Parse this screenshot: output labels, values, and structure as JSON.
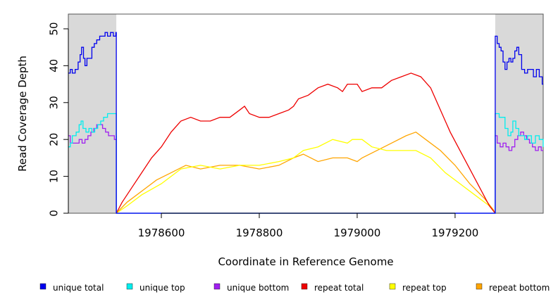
{
  "chart_data": {
    "type": "line",
    "title": "",
    "xlabel": "Coordinate in Reference Genome",
    "ylabel": "Read Coverage Depth",
    "xlim": [
      1978410,
      1979380
    ],
    "ylim": [
      0,
      54
    ],
    "x_ticks": [
      1978600,
      1978800,
      1979000,
      1979200
    ],
    "y_ticks": [
      0,
      10,
      20,
      30,
      40,
      50
    ],
    "shaded_regions": [
      {
        "from": 1978410,
        "to": 1978508,
        "color": "#d9d9d9"
      },
      {
        "from": 1979282,
        "to": 1979380,
        "color": "#d9d9d9"
      }
    ],
    "legend_position": "bottom",
    "series": [
      {
        "name": "unique total",
        "color": "#0000ee",
        "step": true,
        "points": [
          [
            1978410,
            38
          ],
          [
            1978414,
            39
          ],
          [
            1978418,
            38
          ],
          [
            1978424,
            39
          ],
          [
            1978430,
            41
          ],
          [
            1978434,
            43
          ],
          [
            1978437,
            45
          ],
          [
            1978441,
            42
          ],
          [
            1978444,
            40
          ],
          [
            1978448,
            42
          ],
          [
            1978455,
            42
          ],
          [
            1978458,
            45
          ],
          [
            1978463,
            46
          ],
          [
            1978468,
            47
          ],
          [
            1978474,
            48
          ],
          [
            1978480,
            48
          ],
          [
            1978485,
            49
          ],
          [
            1978490,
            48
          ],
          [
            1978496,
            49
          ],
          [
            1978502,
            48
          ],
          [
            1978507,
            49
          ],
          [
            1978508,
            0
          ],
          [
            1979282,
            0
          ],
          [
            1979282,
            48
          ],
          [
            1979286,
            46
          ],
          [
            1979290,
            45
          ],
          [
            1979294,
            44
          ],
          [
            1979298,
            41
          ],
          [
            1979302,
            39
          ],
          [
            1979306,
            41
          ],
          [
            1979310,
            42
          ],
          [
            1979314,
            41
          ],
          [
            1979318,
            42
          ],
          [
            1979322,
            44
          ],
          [
            1979326,
            45
          ],
          [
            1979330,
            43
          ],
          [
            1979336,
            39
          ],
          [
            1979342,
            38
          ],
          [
            1979348,
            39
          ],
          [
            1979354,
            39
          ],
          [
            1979360,
            37
          ],
          [
            1979366,
            39
          ],
          [
            1979372,
            37
          ],
          [
            1979378,
            35
          ],
          [
            1979380,
            35
          ]
        ]
      },
      {
        "name": "unique top",
        "color": "#00eeee",
        "step": true,
        "points": [
          [
            1978410,
            18
          ],
          [
            1978414,
            19
          ],
          [
            1978418,
            21
          ],
          [
            1978426,
            22
          ],
          [
            1978432,
            24
          ],
          [
            1978436,
            25
          ],
          [
            1978440,
            23
          ],
          [
            1978446,
            22
          ],
          [
            1978452,
            23
          ],
          [
            1978458,
            22
          ],
          [
            1978464,
            23
          ],
          [
            1978470,
            24
          ],
          [
            1978476,
            25
          ],
          [
            1978482,
            26
          ],
          [
            1978490,
            27
          ],
          [
            1978500,
            27
          ],
          [
            1978508,
            27
          ],
          [
            1978508,
            0
          ],
          [
            1979282,
            0
          ],
          [
            1979282,
            27
          ],
          [
            1979290,
            26
          ],
          [
            1979296,
            26
          ],
          [
            1979302,
            23
          ],
          [
            1979308,
            21
          ],
          [
            1979314,
            22
          ],
          [
            1979318,
            25
          ],
          [
            1979324,
            23
          ],
          [
            1979330,
            21
          ],
          [
            1979336,
            21
          ],
          [
            1979342,
            20
          ],
          [
            1979348,
            21
          ],
          [
            1979356,
            19
          ],
          [
            1979364,
            21
          ],
          [
            1979372,
            20
          ],
          [
            1979380,
            18
          ]
        ]
      },
      {
        "name": "unique bottom",
        "color": "#a020f0",
        "step": true,
        "points": [
          [
            1978410,
            21
          ],
          [
            1978414,
            19
          ],
          [
            1978420,
            19
          ],
          [
            1978426,
            19
          ],
          [
            1978432,
            20
          ],
          [
            1978438,
            19
          ],
          [
            1978444,
            20
          ],
          [
            1978450,
            21
          ],
          [
            1978456,
            22
          ],
          [
            1978462,
            23
          ],
          [
            1978468,
            24
          ],
          [
            1978474,
            24
          ],
          [
            1978480,
            23
          ],
          [
            1978486,
            22
          ],
          [
            1978492,
            21
          ],
          [
            1978498,
            21
          ],
          [
            1978504,
            20
          ],
          [
            1978508,
            21
          ],
          [
            1978508,
            0
          ],
          [
            1979282,
            0
          ],
          [
            1979282,
            21
          ],
          [
            1979286,
            19
          ],
          [
            1979292,
            18
          ],
          [
            1979298,
            19
          ],
          [
            1979304,
            18
          ],
          [
            1979310,
            17
          ],
          [
            1979316,
            18
          ],
          [
            1979322,
            20
          ],
          [
            1979328,
            21
          ],
          [
            1979334,
            22
          ],
          [
            1979340,
            21
          ],
          [
            1979346,
            20
          ],
          [
            1979352,
            19
          ],
          [
            1979358,
            18
          ],
          [
            1979364,
            17
          ],
          [
            1979370,
            18
          ],
          [
            1979376,
            17
          ],
          [
            1979380,
            17
          ]
        ]
      },
      {
        "name": "repeat total",
        "color": "#ee0000",
        "step": false,
        "points": [
          [
            1978508,
            0
          ],
          [
            1978520,
            3
          ],
          [
            1978540,
            7
          ],
          [
            1978560,
            11
          ],
          [
            1978580,
            15
          ],
          [
            1978600,
            18
          ],
          [
            1978620,
            22
          ],
          [
            1978640,
            25
          ],
          [
            1978660,
            26
          ],
          [
            1978680,
            25
          ],
          [
            1978700,
            25
          ],
          [
            1978720,
            26
          ],
          [
            1978740,
            26
          ],
          [
            1978760,
            28
          ],
          [
            1978770,
            29
          ],
          [
            1978780,
            27
          ],
          [
            1978800,
            26
          ],
          [
            1978820,
            26
          ],
          [
            1978840,
            27
          ],
          [
            1978860,
            28
          ],
          [
            1978870,
            29
          ],
          [
            1978880,
            31
          ],
          [
            1978900,
            32
          ],
          [
            1978920,
            34
          ],
          [
            1978940,
            35
          ],
          [
            1978960,
            34
          ],
          [
            1978970,
            33
          ],
          [
            1978980,
            35
          ],
          [
            1979000,
            35
          ],
          [
            1979010,
            33
          ],
          [
            1979030,
            34
          ],
          [
            1979050,
            34
          ],
          [
            1979070,
            36
          ],
          [
            1979090,
            37
          ],
          [
            1979110,
            38
          ],
          [
            1979130,
            37
          ],
          [
            1979150,
            34
          ],
          [
            1979170,
            28
          ],
          [
            1979190,
            22
          ],
          [
            1979210,
            17
          ],
          [
            1979230,
            12
          ],
          [
            1979250,
            7
          ],
          [
            1979270,
            2
          ],
          [
            1979282,
            0
          ]
        ]
      },
      {
        "name": "repeat top",
        "color": "#ffff00",
        "step": false,
        "points": [
          [
            1978508,
            0
          ],
          [
            1978530,
            2
          ],
          [
            1978560,
            5
          ],
          [
            1978600,
            8
          ],
          [
            1978640,
            12
          ],
          [
            1978680,
            13
          ],
          [
            1978720,
            12
          ],
          [
            1978760,
            13
          ],
          [
            1978800,
            13
          ],
          [
            1978840,
            14
          ],
          [
            1978870,
            15
          ],
          [
            1978890,
            17
          ],
          [
            1978920,
            18
          ],
          [
            1978950,
            20
          ],
          [
            1978980,
            19
          ],
          [
            1978990,
            20
          ],
          [
            1979010,
            20
          ],
          [
            1979030,
            18
          ],
          [
            1979060,
            17
          ],
          [
            1979090,
            17
          ],
          [
            1979120,
            17
          ],
          [
            1979150,
            15
          ],
          [
            1979180,
            11
          ],
          [
            1979210,
            8
          ],
          [
            1979240,
            5
          ],
          [
            1979270,
            2
          ],
          [
            1979282,
            0
          ]
        ]
      },
      {
        "name": "repeat bottom",
        "color": "#ffa500",
        "step": false,
        "points": [
          [
            1978508,
            0
          ],
          [
            1978530,
            3
          ],
          [
            1978560,
            6
          ],
          [
            1978590,
            9
          ],
          [
            1978620,
            11
          ],
          [
            1978650,
            13
          ],
          [
            1978680,
            12
          ],
          [
            1978720,
            13
          ],
          [
            1978760,
            13
          ],
          [
            1978800,
            12
          ],
          [
            1978840,
            13
          ],
          [
            1978870,
            15
          ],
          [
            1978890,
            16
          ],
          [
            1978920,
            14
          ],
          [
            1978950,
            15
          ],
          [
            1978980,
            15
          ],
          [
            1979000,
            14
          ],
          [
            1979010,
            15
          ],
          [
            1979040,
            17
          ],
          [
            1979070,
            19
          ],
          [
            1979100,
            21
          ],
          [
            1979120,
            22
          ],
          [
            1979140,
            20
          ],
          [
            1979170,
            17
          ],
          [
            1979200,
            13
          ],
          [
            1979230,
            8
          ],
          [
            1979260,
            4
          ],
          [
            1979278,
            1
          ],
          [
            1979282,
            0
          ]
        ]
      }
    ]
  }
}
